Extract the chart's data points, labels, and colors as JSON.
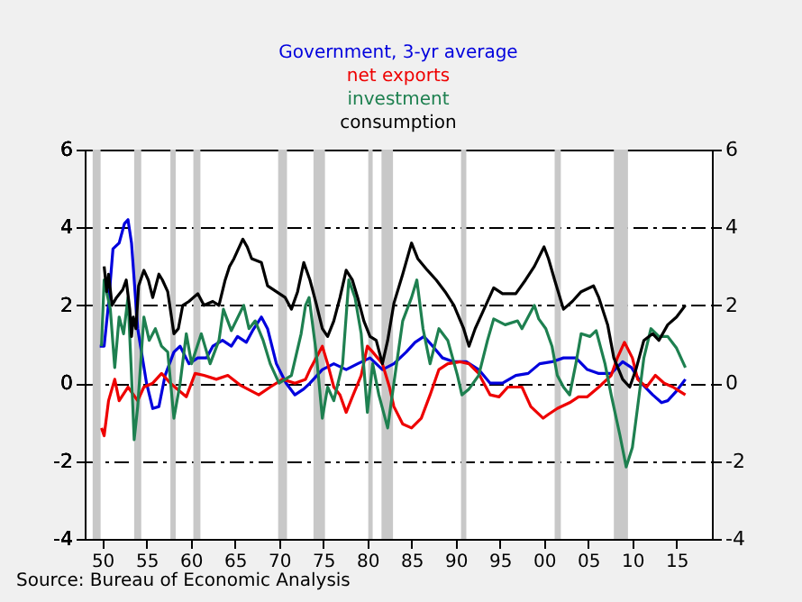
{
  "chart_data": {
    "type": "line",
    "annotations": [
      "Source: Bureau of Economic Analysis"
    ],
    "xlim": [
      1948,
      2019
    ],
    "xticks": [
      {
        "value": 1950,
        "label": "50"
      },
      {
        "value": 1955,
        "label": "55"
      },
      {
        "value": 1960,
        "label": "60"
      },
      {
        "value": 1965,
        "label": "65"
      },
      {
        "value": 1970,
        "label": "70"
      },
      {
        "value": 1975,
        "label": "75"
      },
      {
        "value": 1980,
        "label": "80"
      },
      {
        "value": 1985,
        "label": "85"
      },
      {
        "value": 1990,
        "label": "90"
      },
      {
        "value": 1995,
        "label": "95"
      },
      {
        "value": 2000,
        "label": "00"
      },
      {
        "value": 2005,
        "label": "05"
      },
      {
        "value": 2010,
        "label": "10"
      },
      {
        "value": 2015,
        "label": "15"
      }
    ],
    "ylim": [
      -4,
      6
    ],
    "yticks": [
      -4,
      -2,
      0,
      2,
      4,
      6
    ],
    "y2lim": [
      -4,
      6
    ],
    "y2ticks": [
      -4,
      -2,
      0,
      2,
      4,
      6
    ],
    "grid": "y",
    "legend": "top",
    "bands": [
      {
        "axis": "x",
        "from": 1948.9,
        "to": 1949.8,
        "color": "#c8c8c8"
      },
      {
        "axis": "x",
        "from": 1953.6,
        "to": 1954.4,
        "color": "#c8c8c8"
      },
      {
        "axis": "x",
        "from": 1957.7,
        "to": 1958.3,
        "color": "#c8c8c8"
      },
      {
        "axis": "x",
        "from": 1960.3,
        "to": 1961.1,
        "color": "#c8c8c8"
      },
      {
        "axis": "x",
        "from": 1969.9,
        "to": 1970.9,
        "color": "#c8c8c8"
      },
      {
        "axis": "x",
        "from": 1973.9,
        "to": 1975.2,
        "color": "#c8c8c8"
      },
      {
        "axis": "x",
        "from": 1980.1,
        "to": 1980.6,
        "color": "#c8c8c8"
      },
      {
        "axis": "x",
        "from": 1981.6,
        "to": 1982.9,
        "color": "#c8c8c8"
      },
      {
        "axis": "x",
        "from": 1990.6,
        "to": 1991.2,
        "color": "#c8c8c8"
      },
      {
        "axis": "x",
        "from": 2001.2,
        "to": 2001.9,
        "color": "#c8c8c8"
      },
      {
        "axis": "x",
        "from": 2007.9,
        "to": 2009.5,
        "color": "#c8c8c8"
      }
    ],
    "series": [
      {
        "name": "Government, 3-yr average",
        "color": "#0000dd",
        "x": [
          1949.7,
          1950.2,
          1950.7,
          1951.2,
          1951.9,
          1952.5,
          1952.9,
          1953.3,
          1954,
          1955,
          1955.7,
          1956.4,
          1957.1,
          1958.1,
          1958.8,
          1959.8,
          1960.8,
          1961.8,
          1962.5,
          1963.6,
          1964.6,
          1965.3,
          1966.3,
          1967,
          1968,
          1968.7,
          1969.7,
          1970.8,
          1971.8,
          1972.8,
          1973.5,
          1974.9,
          1976.2,
          1977.6,
          1978.9,
          1980.3,
          1981.7,
          1983,
          1984.4,
          1985.4,
          1986.4,
          1987.4,
          1988.5,
          1989.8,
          1991.2,
          1992.6,
          1993.9,
          1995.3,
          1996.8,
          1998.2,
          1999.5,
          2000.9,
          2002.2,
          2003.6,
          2004.9,
          2006.2,
          2007.6,
          2008.9,
          2009.9,
          2011,
          2012.3,
          2013.3,
          2014,
          2015,
          2016
        ],
        "values": [
          0.95,
          0.95,
          2.05,
          3.45,
          3.6,
          4.1,
          4.2,
          3.6,
          1.4,
          0.0,
          -0.65,
          -0.6,
          0.2,
          0.8,
          0.95,
          0.5,
          0.65,
          0.65,
          0.95,
          1.1,
          0.95,
          1.2,
          1.05,
          1.35,
          1.7,
          1.4,
          0.5,
          0.0,
          -0.3,
          -0.15,
          0.0,
          0.35,
          0.5,
          0.35,
          0.5,
          0.65,
          0.35,
          0.5,
          0.8,
          1.05,
          1.2,
          0.95,
          0.65,
          0.55,
          0.55,
          0.35,
          0.0,
          0.0,
          0.2,
          0.25,
          0.5,
          0.55,
          0.65,
          0.65,
          0.35,
          0.25,
          0.25,
          0.55,
          0.4,
          0.0,
          -0.3,
          -0.5,
          -0.45,
          -0.2,
          0.1
        ]
      },
      {
        "name": "net exports",
        "color": "#ee0000",
        "x": [
          1949.9,
          1950.2,
          1950.7,
          1951.4,
          1951.9,
          1952.9,
          1954,
          1954.7,
          1955.7,
          1956.7,
          1957.7,
          1959.5,
          1960.5,
          1961.5,
          1962.9,
          1964.2,
          1965.6,
          1967.7,
          1969,
          1970.4,
          1971.8,
          1973,
          1973.5,
          1974.9,
          1975.5,
          1976.2,
          1976.9,
          1977.6,
          1978.3,
          1979.3,
          1980,
          1980.6,
          1981.7,
          1982.5,
          1983,
          1984,
          1985,
          1986.1,
          1987.1,
          1988.1,
          1989.1,
          1990.5,
          1991.5,
          1992.6,
          1993.9,
          1994.9,
          1995.9,
          1997.5,
          1998.5,
          1999.9,
          2000.5,
          2001.5,
          2002.9,
          2003.9,
          2004.9,
          2006.2,
          2007.6,
          2008.3,
          2009.1,
          2010,
          2010.6,
          2011.6,
          2012.6,
          2013.6,
          2014.6,
          2015.3,
          2016
        ],
        "values": [
          -1.15,
          -1.35,
          -0.45,
          0.1,
          -0.45,
          -0.1,
          -0.45,
          -0.1,
          0.0,
          0.25,
          0.0,
          -0.35,
          0.25,
          0.2,
          0.1,
          0.2,
          -0.05,
          -0.3,
          -0.1,
          0.1,
          0.0,
          0.1,
          0.35,
          0.95,
          0.5,
          -0.1,
          -0.3,
          -0.75,
          -0.35,
          0.2,
          0.95,
          0.8,
          0.5,
          -0.1,
          -0.6,
          -1.05,
          -1.15,
          -0.9,
          -0.3,
          0.35,
          0.5,
          0.55,
          0.5,
          0.25,
          -0.3,
          -0.35,
          -0.1,
          -0.1,
          -0.6,
          -0.9,
          -0.8,
          -0.65,
          -0.5,
          -0.35,
          -0.35,
          -0.1,
          0.2,
          0.65,
          1.05,
          0.65,
          0.1,
          -0.1,
          0.2,
          0.0,
          -0.1,
          -0.2,
          -0.3
        ]
      },
      {
        "name": "investment",
        "color": "#1e8050",
        "x": [
          1949.9,
          1950.2,
          1950.9,
          1951.4,
          1951.9,
          1952.4,
          1952.9,
          1953.3,
          1953.6,
          1954,
          1954.7,
          1955.3,
          1956,
          1956.7,
          1957.4,
          1958.1,
          1958.8,
          1959.5,
          1960.1,
          1961.2,
          1962.2,
          1963.2,
          1963.7,
          1964.6,
          1966,
          1966.6,
          1967.3,
          1968.2,
          1969,
          1970,
          1971.4,
          1972.5,
          1973,
          1973.4,
          1974.2,
          1974.9,
          1975.5,
          1976.2,
          1977.2,
          1977.9,
          1978.6,
          1979.3,
          1980,
          1980.6,
          1981.3,
          1982.3,
          1983,
          1984,
          1985,
          1985.6,
          1986.3,
          1987.1,
          1988.1,
          1989.1,
          1990.2,
          1990.7,
          1991.5,
          1992.6,
          1993.6,
          1994.3,
          1995.6,
          1997,
          1997.5,
          1998.9,
          1999.4,
          2000.2,
          2000.9,
          2001.5,
          2002.2,
          2002.9,
          2003.6,
          2004.2,
          2005.2,
          2005.9,
          2006.9,
          2007.6,
          2008.6,
          2009.3,
          2010,
          2010.6,
          2011.3,
          2012.1,
          2013,
          2014,
          2015,
          2016
        ],
        "values": [
          0.95,
          2.65,
          1.9,
          0.4,
          1.7,
          1.27,
          2.2,
          0.2,
          -1.45,
          -0.6,
          1.7,
          1.1,
          1.4,
          0.95,
          0.8,
          -0.9,
          0.0,
          1.27,
          0.5,
          1.27,
          0.5,
          1.1,
          1.9,
          1.35,
          2.0,
          1.4,
          1.6,
          1.1,
          0.5,
          0.0,
          0.2,
          1.27,
          2.0,
          2.2,
          0.8,
          -0.9,
          -0.1,
          -0.45,
          0.5,
          2.65,
          2.2,
          1.27,
          -0.75,
          0.5,
          -0.3,
          -1.15,
          0.0,
          1.6,
          2.2,
          2.65,
          1.4,
          0.5,
          1.4,
          1.1,
          0.2,
          -0.3,
          -0.15,
          0.2,
          1.1,
          1.65,
          1.5,
          1.6,
          1.4,
          2.0,
          1.65,
          1.4,
          0.95,
          0.2,
          -0.1,
          -0.3,
          0.5,
          1.27,
          1.2,
          1.35,
          0.5,
          -0.3,
          -1.35,
          -2.15,
          -1.65,
          -0.6,
          0.65,
          1.4,
          1.2,
          1.2,
          0.9,
          0.4
        ]
      },
      {
        "name": "consumption",
        "color": "#000000",
        "x": [
          1950.2,
          1950.5,
          1950.7,
          1951.1,
          1951.6,
          1952.3,
          1952.7,
          1953.1,
          1953.3,
          1953.5,
          1953.8,
          1954.1,
          1954.7,
          1955.2,
          1955.7,
          1956.4,
          1956.8,
          1957.4,
          1958.1,
          1958.6,
          1959.1,
          1959.8,
          1960.8,
          1961.5,
          1962.5,
          1963.2,
          1963.9,
          1964.4,
          1964.9,
          1965.9,
          1966.4,
          1966.9,
          1968,
          1968.7,
          1969.7,
          1970.7,
          1971.4,
          1972.1,
          1972.8,
          1973.5,
          1974.2,
          1974.9,
          1975.5,
          1976.2,
          1976.9,
          1977.6,
          1978.3,
          1978.9,
          1979.6,
          1980.3,
          1981,
          1981.7,
          1982.3,
          1983,
          1984,
          1985,
          1985.7,
          1986.8,
          1987.8,
          1988.8,
          1989.8,
          1990.9,
          1991.5,
          1992.2,
          1993.2,
          1994.3,
          1995.3,
          1996.8,
          1997.9,
          1998.9,
          2000,
          2000.5,
          2001.2,
          2002.2,
          2003.2,
          2004.2,
          2005.6,
          2006.2,
          2007.2,
          2007.9,
          2008.9,
          2009.7,
          2010.4,
          2011.3,
          2012.3,
          2013,
          2014,
          2015,
          2016
        ],
        "values": [
          3.0,
          2.35,
          2.8,
          2.0,
          2.2,
          2.4,
          2.65,
          1.9,
          1.2,
          1.7,
          1.4,
          2.5,
          2.9,
          2.65,
          2.2,
          2.8,
          2.65,
          2.35,
          1.27,
          1.4,
          2.0,
          2.1,
          2.3,
          2.0,
          2.1,
          2.0,
          2.65,
          3.0,
          3.2,
          3.7,
          3.5,
          3.2,
          3.1,
          2.5,
          2.35,
          2.2,
          1.9,
          2.35,
          3.1,
          2.65,
          2.05,
          1.4,
          1.2,
          1.6,
          2.2,
          2.9,
          2.65,
          2.2,
          1.6,
          1.2,
          1.1,
          0.5,
          1.1,
          2.05,
          2.8,
          3.6,
          3.2,
          2.9,
          2.65,
          2.35,
          2.0,
          1.4,
          0.95,
          1.4,
          1.9,
          2.45,
          2.3,
          2.3,
          2.65,
          3.0,
          3.5,
          3.2,
          2.65,
          1.9,
          2.1,
          2.35,
          2.5,
          2.2,
          1.5,
          0.65,
          0.1,
          -0.1,
          0.35,
          1.1,
          1.27,
          1.1,
          1.5,
          1.7,
          2.0
        ]
      }
    ]
  }
}
